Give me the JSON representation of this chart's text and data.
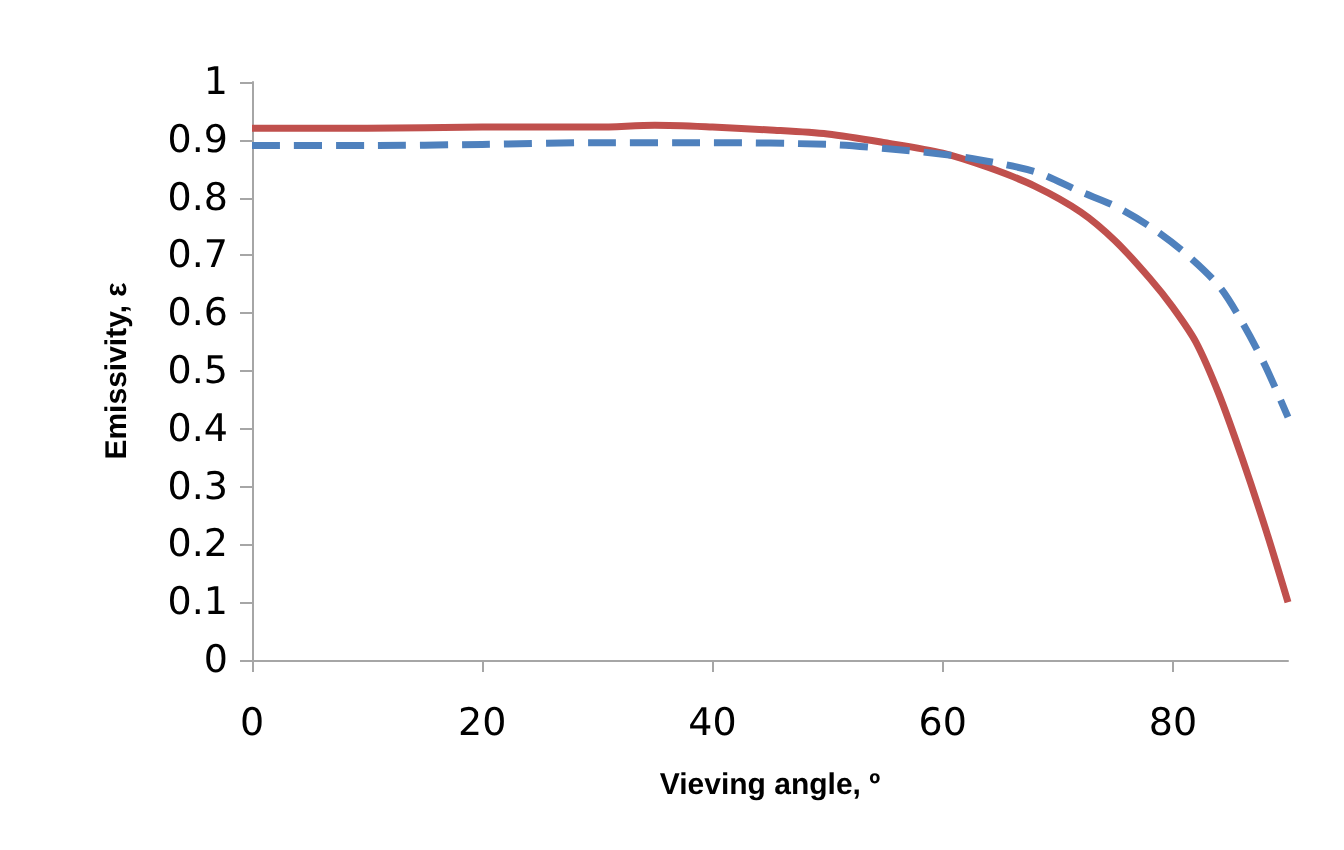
{
  "chart_data": {
    "type": "line",
    "xlabel": "Vieving angle, º",
    "ylabel": "Emissivity, ε",
    "xlim": [
      0,
      90
    ],
    "xticks": [
      0,
      20,
      40,
      60,
      80
    ],
    "ylim": [
      0,
      1
    ],
    "yticks": [
      0,
      0.1,
      0.2,
      0.3,
      0.4,
      0.5,
      0.6,
      0.7,
      0.8,
      0.9,
      1
    ],
    "grid": false,
    "marker": "none",
    "series": [
      {
        "color": "#c0504d",
        "line_style": "solid",
        "x": [
          0,
          10,
          20,
          30,
          35,
          40,
          45,
          50,
          55,
          60,
          64,
          68,
          72,
          75,
          78,
          80,
          82,
          84,
          86,
          88,
          90
        ],
        "values": [
          0.92,
          0.92,
          0.922,
          0.922,
          0.925,
          0.922,
          0.917,
          0.91,
          0.895,
          0.877,
          0.852,
          0.82,
          0.775,
          0.725,
          0.66,
          0.61,
          0.55,
          0.46,
          0.35,
          0.23,
          0.1
        ]
      },
      {
        "color": "#4f81bd",
        "line_style": "dashed",
        "x": [
          0,
          10,
          20,
          30,
          40,
          50,
          55,
          60,
          63,
          68,
          72,
          75,
          78,
          81,
          84,
          86,
          88,
          90
        ],
        "values": [
          0.89,
          0.89,
          0.892,
          0.895,
          0.895,
          0.892,
          0.885,
          0.875,
          0.866,
          0.845,
          0.81,
          0.785,
          0.75,
          0.705,
          0.647,
          0.585,
          0.51,
          0.42
        ]
      }
    ]
  }
}
